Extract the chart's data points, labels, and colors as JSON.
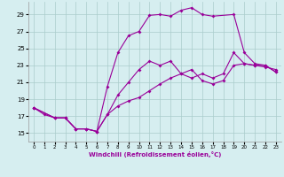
{
  "xlabel": "Windchill (Refroidissement éolien,°C)",
  "bg_color": "#d6eef0",
  "line_color": "#990099",
  "grid_color": "#aacccc",
  "xlim": [
    -0.5,
    23.5
  ],
  "ylim": [
    14.0,
    30.5
  ],
  "yticks": [
    15,
    17,
    19,
    21,
    23,
    25,
    27,
    29
  ],
  "xticks": [
    0,
    1,
    2,
    3,
    4,
    5,
    6,
    7,
    8,
    9,
    10,
    11,
    12,
    13,
    14,
    15,
    16,
    17,
    18,
    19,
    20,
    21,
    22,
    23
  ],
  "series1_x": [
    0,
    1,
    2,
    3,
    4,
    5,
    6,
    7,
    8,
    9,
    10,
    11,
    12,
    13,
    14,
    15,
    16,
    17,
    18,
    19,
    20,
    21,
    22,
    23
  ],
  "series1_y": [
    18.0,
    17.2,
    16.8,
    16.8,
    15.5,
    15.5,
    15.2,
    17.2,
    18.2,
    18.8,
    19.2,
    20.0,
    20.8,
    21.5,
    22.0,
    22.5,
    21.2,
    20.8,
    21.2,
    23.0,
    23.2,
    23.0,
    22.8,
    22.5
  ],
  "series2_x": [
    0,
    2,
    3,
    4,
    5,
    6,
    7,
    8,
    9,
    10,
    11,
    12,
    13,
    14,
    15,
    16,
    17,
    18,
    19,
    20,
    21,
    22,
    23
  ],
  "series2_y": [
    18.0,
    16.8,
    16.8,
    15.5,
    15.5,
    15.2,
    17.2,
    19.5,
    21.0,
    22.5,
    23.5,
    23.0,
    23.5,
    22.0,
    21.5,
    22.0,
    21.5,
    22.0,
    24.5,
    23.2,
    23.0,
    23.0,
    22.2
  ],
  "series3_x": [
    0,
    2,
    3,
    4,
    5,
    6,
    7,
    8,
    9,
    10,
    11,
    12,
    13,
    14,
    15,
    16,
    17,
    19,
    20,
    21,
    22,
    23
  ],
  "series3_y": [
    18.0,
    16.8,
    16.8,
    15.5,
    15.5,
    15.2,
    20.5,
    24.5,
    26.5,
    27.0,
    28.9,
    29.0,
    28.8,
    29.5,
    29.8,
    29.0,
    28.8,
    29.0,
    24.5,
    23.2,
    23.0,
    22.2
  ]
}
